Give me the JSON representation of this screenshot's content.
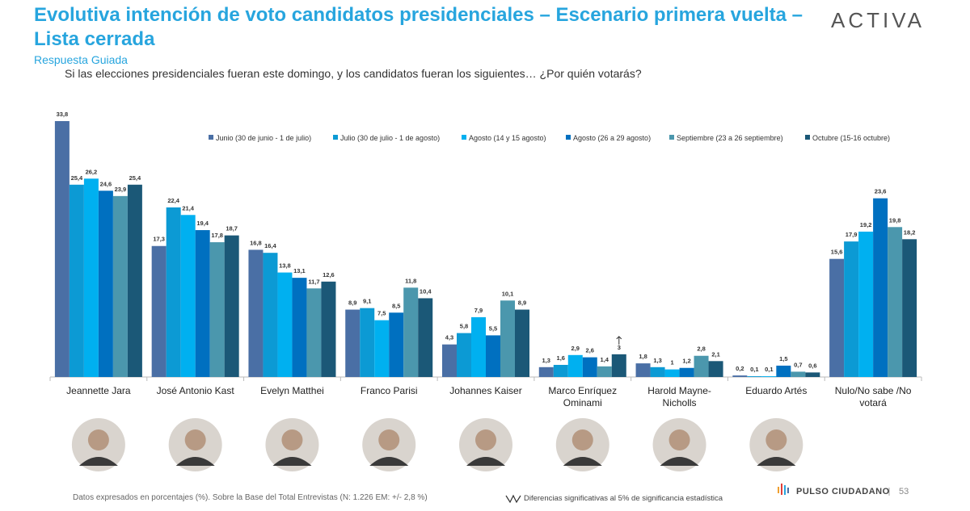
{
  "chart_data": {
    "type": "grouped-bar",
    "title": "Evolutiva intención de voto candidatos presidenciales – Escenario primera vuelta – Lista cerrada",
    "subtitle": "Respuesta Guiada",
    "question": "Si las elecciones presidenciales fueran este domingo, y los candidatos fueran los siguientes… ¿Por quién votarás?",
    "logo": "ACTIVA",
    "source_note": "Datos expresados en porcentajes (%). Sobre la Base del Total Entrevistas (N: 1.226  EM: +/- 2,8 %)",
    "significance_note": "Diferencias  significativas  al 5% de significancia estadística",
    "brand": "PULSO CIUDADANO",
    "page_number": "53",
    "categories": [
      "Jeannette Jara",
      "José Antonio Kast",
      "Evelyn Matthei",
      "Franco Parisi",
      "Johannes Kaiser",
      "Marco Enríquez Ominami",
      "Harold Mayne-Nicholls",
      "Eduardo Artés",
      "Nulo/No sabe /No votará"
    ],
    "series": [
      {
        "name": "Junio (30 de junio - 1 de julio)",
        "color": "#4a6fa5",
        "values": [
          33.8,
          17.3,
          16.8,
          8.9,
          4.3,
          1.3,
          1.8,
          0.2,
          15.6
        ],
        "value_labels": [
          "33,8",
          "17,3",
          "16,8",
          "8,9",
          "4,3",
          "1,3",
          "1,8",
          "0,2",
          "15,6"
        ]
      },
      {
        "name": "Julio (30 de julio - 1 de agosto)",
        "color": "#0c9ad4",
        "values": [
          25.4,
          22.4,
          16.4,
          9.1,
          5.8,
          1.6,
          1.3,
          0.1,
          17.9
        ],
        "value_labels": [
          "25,4",
          "22,4",
          "16,4",
          "9,1",
          "5,8",
          "1,6",
          "1,3",
          "0,1",
          "17,9"
        ]
      },
      {
        "name": "Agosto (14 y 15 agosto)",
        "color": "#00b0f0",
        "values": [
          26.2,
          21.4,
          13.8,
          7.5,
          7.9,
          2.9,
          1,
          0.1,
          19.2
        ],
        "value_labels": [
          "26,2",
          "21,4",
          "13,8",
          "7,5",
          "7,9",
          "2,9",
          "1",
          "0,1",
          "19,2"
        ]
      },
      {
        "name": "Agosto (26 a 29 agosto)",
        "color": "#0070c0",
        "values": [
          24.6,
          19.4,
          13.1,
          8.5,
          5.5,
          2.6,
          1.2,
          1.5,
          23.6
        ],
        "value_labels": [
          "24,6",
          "19,4",
          "13,1",
          "8,5",
          "5,5",
          "2,6",
          "1,2",
          "1,5",
          "23,6"
        ]
      },
      {
        "name": "Septiembre (23 a 26 septiembre)",
        "color": "#4b97ad",
        "values": [
          23.9,
          17.8,
          11.7,
          11.8,
          10.1,
          1.4,
          2.8,
          0.7,
          19.8
        ],
        "value_labels": [
          "23,9",
          "17,8",
          "11,7",
          "11,8",
          "10,1",
          "1,4",
          "2,8",
          "0,7",
          "19,8"
        ]
      },
      {
        "name": "Octubre (15-16 octubre)",
        "color": "#1b5877",
        "values": [
          25.4,
          18.7,
          12.6,
          10.4,
          8.9,
          3,
          2.1,
          0.6,
          18.2
        ],
        "value_labels": [
          "25,4",
          "18,7",
          "12,6",
          "10,4",
          "8,9",
          "3",
          "2,1",
          "0,6",
          "18,2"
        ]
      }
    ]
  }
}
